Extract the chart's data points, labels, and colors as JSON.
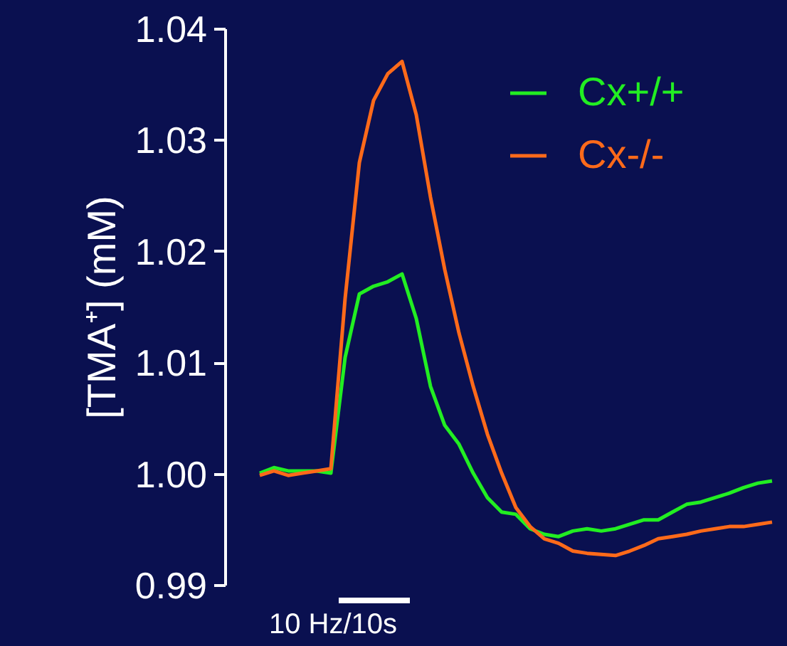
{
  "chart_data": {
    "type": "line",
    "ylabel": "[TMA⁺] (mM)",
    "categories": [
      null,
      null,
      null,
      null,
      null,
      null,
      null,
      null,
      null,
      null,
      null,
      null,
      null,
      null,
      null,
      null,
      null,
      null,
      null,
      null,
      null,
      null,
      null,
      null,
      null,
      null,
      null,
      null,
      null,
      null,
      null,
      null,
      null,
      null,
      null,
      null,
      null
    ],
    "series": [
      {
        "name": "Cx+/+",
        "color": "#22ee22",
        "values": [
          1.0001,
          1.0006,
          1.0003,
          1.0003,
          1.0003,
          1.0001,
          1.0105,
          1.0162,
          1.0169,
          1.0173,
          1.018,
          1.014,
          1.0079,
          1.0044,
          1.0027,
          1.0001,
          0.9979,
          0.9966,
          0.9964,
          0.9951,
          0.9946,
          0.9944,
          0.9949,
          0.9951,
          0.9949,
          0.9951,
          0.9955,
          0.9959,
          0.9959,
          0.9966,
          0.9973,
          0.9975,
          0.9979,
          0.9983,
          0.9988,
          0.9992,
          0.9994
        ]
      },
      {
        "name": "Cx-/-",
        "color": "#ff6a1a",
        "values": [
          0.9999,
          1.0003,
          0.9999,
          1.0001,
          1.0003,
          1.0005,
          1.0158,
          1.028,
          1.0336,
          1.036,
          1.0371,
          1.0323,
          1.0249,
          1.0184,
          1.0127,
          1.0079,
          1.0036,
          1.0001,
          0.997,
          0.9953,
          0.9942,
          0.9938,
          0.9931,
          0.9929,
          0.9928,
          0.9927,
          0.9931,
          0.9936,
          0.9942,
          0.9944,
          0.9946,
          0.9949,
          0.9951,
          0.9953,
          0.9953,
          0.9955,
          0.9957
        ]
      }
    ],
    "ylim": [
      0.99,
      1.04
    ],
    "yticks": [
      {
        "value": 0.99,
        "label": "0.99"
      },
      {
        "value": 1.0,
        "label": "1.00"
      },
      1.01,
      1.02,
      1.03,
      1.04
    ],
    "annotations": [
      "10 Hz/10s"
    ],
    "legend": "top right",
    "grid": false,
    "tick_labels": "y",
    "marker": "none",
    "line_style": "solid"
  }
}
